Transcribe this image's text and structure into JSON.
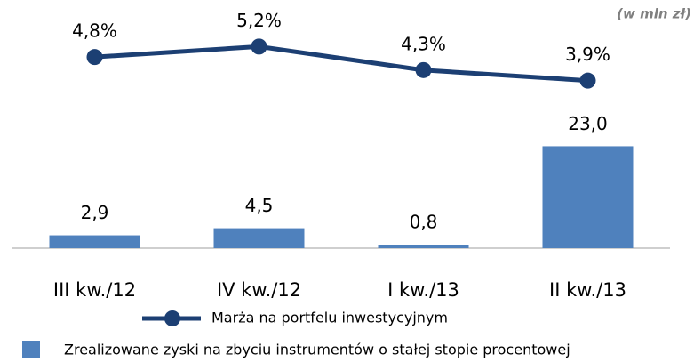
{
  "chart_data": {
    "type": "bar-line",
    "annotation": "(w mln zł)",
    "categories": [
      "III kw./12",
      "IV kw./12",
      "I kw./13",
      "II kw./13"
    ],
    "series": [
      {
        "name": "Zrealizowane zyski na zbyciu instrumentów o stałej stopie procentowej",
        "type": "bar",
        "color": "#4f81bd",
        "values": [
          2.9,
          4.5,
          0.8,
          23.0
        ],
        "value_labels": [
          "2,9",
          "4,5",
          "0,8",
          "23,0"
        ]
      },
      {
        "name": "Marża na portfelu inwestycyjnym",
        "type": "line",
        "axis": "y2",
        "color": "#1c3f73",
        "values": [
          4.8,
          5.2,
          4.3,
          3.9
        ],
        "value_labels": [
          "4,8%",
          "5,2%",
          "4,3%",
          "3,9%"
        ]
      }
    ],
    "ylim": [
      0,
      52
    ],
    "y2lim": [
      -2.5,
      6.3
    ]
  }
}
